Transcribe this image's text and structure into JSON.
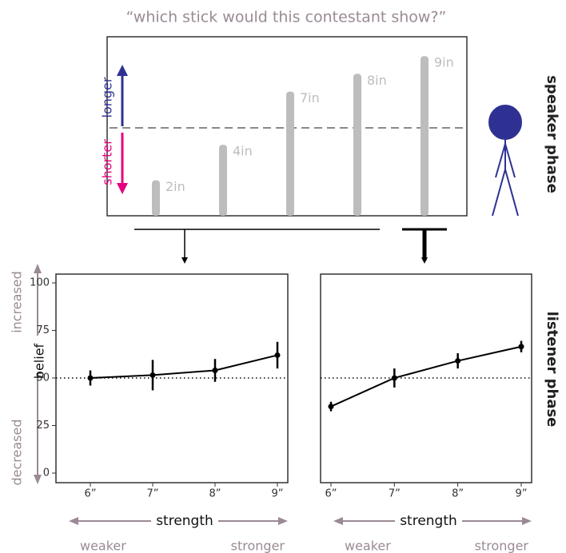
{
  "figure": {
    "title": "“which stick would this contestant show?”",
    "longer": "longer",
    "shorter": "shorter",
    "speaker_phase": "speaker phase",
    "listener_phase": "listener phase",
    "increased": "increased",
    "decreased": "decreased",
    "sticks": [
      {
        "label": "2in",
        "length": 2
      },
      {
        "label": "4in",
        "length": 4
      },
      {
        "label": "7in",
        "length": 7
      },
      {
        "label": "8in",
        "length": 8
      },
      {
        "label": "9in",
        "length": 9
      }
    ]
  },
  "chart_data": [
    {
      "type": "line",
      "categories": [
        "6”",
        "7”",
        "8”",
        "9”"
      ],
      "values": [
        50,
        51.5,
        54,
        62
      ],
      "errors": [
        4,
        8,
        6,
        7
      ],
      "ylim": [
        0,
        100
      ],
      "yticks": [
        0,
        25,
        50,
        75,
        100
      ],
      "reference": 50,
      "color": "#000000",
      "ylabel": "belief",
      "xlabel": "strength",
      "x_left": "weaker",
      "x_right": "stronger"
    },
    {
      "type": "line",
      "categories": [
        "6”",
        "7”",
        "8”",
        "9”"
      ],
      "values": [
        35,
        50,
        59,
        66.5
      ],
      "errors": [
        2.5,
        5,
        4,
        3
      ],
      "ylim": [
        0,
        100
      ],
      "reference": 50,
      "color": "#000000",
      "xlabel": "strength",
      "x_left": "weaker",
      "x_right": "stronger"
    }
  ]
}
